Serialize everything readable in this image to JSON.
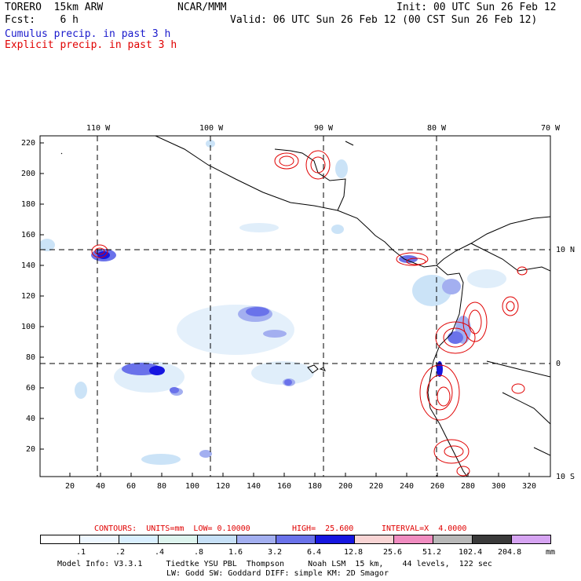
{
  "header": {
    "model": "TORERO  15km ARW",
    "org": "NCAR/MMM",
    "init": "Init: 00 UTC Sun 26 Feb 12",
    "fcst": "Fcst:    6 h",
    "valid": "Valid: 06 UTC Sun 26 Feb 12 (00 CST Sun 26 Feb 12)",
    "field1": "Cumulus precip. in past 3 h",
    "field2": "Explicit precip. in past 3 h",
    "field1_color": "#1a1acc",
    "field2_color": "#e00000"
  },
  "map": {
    "lon_labels": [
      "110 W",
      "100 W",
      "90 W",
      "80 W",
      "70 W"
    ],
    "lat_labels": [
      "10 N",
      "0",
      "10 S"
    ],
    "y_ticks": [
      "220",
      "200",
      "180",
      "160",
      "140",
      "120",
      "100",
      "80",
      "60",
      "40",
      "20"
    ],
    "x_ticks": [
      "20",
      "40",
      "60",
      "80",
      "100",
      "120",
      "140",
      "160",
      "180",
      "200",
      "220",
      "240",
      "260",
      "280",
      "300",
      "320"
    ]
  },
  "contour_info": {
    "contours": "CONTOURS:  UNITS=mm  LOW= 0.10000",
    "high": "HIGH=  25.600",
    "interval": "INTERVAL=X  4.0000"
  },
  "colorbar": {
    "units": "mm",
    "labels": [
      ".1",
      ".2",
      ".4",
      ".8",
      "1.6",
      "3.2",
      "6.4",
      "12.8",
      "25.6",
      "51.2",
      "102.4",
      "204.8"
    ],
    "colors": [
      "#ffffff",
      "#eef7ff",
      "#d9efff",
      "#ddf4ee",
      "#c6e0f7",
      "#a3aff0",
      "#6a72ea",
      "#1616e0",
      "#f8d4d4",
      "#f08cc0",
      "#b8b8b8",
      "#3a3a3a",
      "#d6a4f2"
    ]
  },
  "footer": {
    "line1": "Model Info: V3.3.1     Tiedtke YSU PBL  Thompson     Noah LSM  15 km,    44 levels,  122 sec",
    "line2": "LW: Godd SW: Goddard DIFF: simple KM: 2D Smagor"
  }
}
